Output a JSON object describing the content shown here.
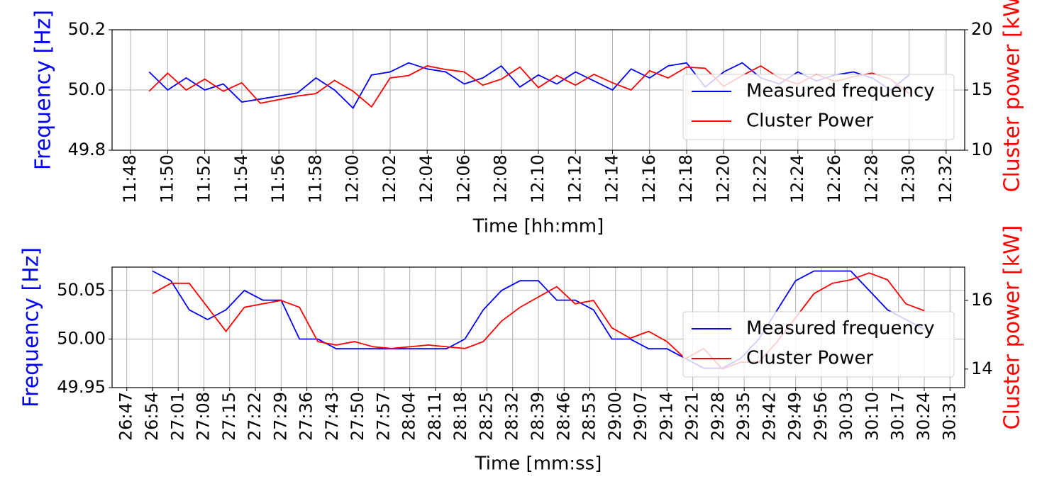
{
  "chart_data": [
    {
      "type": "line",
      "xlabel": "Time [hh:mm]",
      "ylabel": "Frequency [Hz]",
      "y2label": "Cluster power [kW]",
      "x": [
        "11:49",
        "11:50",
        "11:51",
        "11:52",
        "11:53",
        "11:54",
        "11:55",
        "11:56",
        "11:57",
        "11:58",
        "11:59",
        "12:00",
        "12:01",
        "12:02",
        "12:03",
        "12:04",
        "12:05",
        "12:06",
        "12:07",
        "12:08",
        "12:09",
        "12:10",
        "12:11",
        "12:12",
        "12:13",
        "12:14",
        "12:15",
        "12:16",
        "12:17",
        "12:18",
        "12:19",
        "12:20",
        "12:21",
        "12:22",
        "12:23",
        "12:24",
        "12:25",
        "12:26",
        "12:27",
        "12:28",
        "12:29",
        "12:30"
      ],
      "xlim": [
        "11:47",
        "12:33"
      ],
      "xticks": [
        "11:48",
        "11:50",
        "11:52",
        "11:54",
        "11:56",
        "11:58",
        "12:00",
        "12:02",
        "12:04",
        "12:06",
        "12:08",
        "12:10",
        "12:12",
        "12:14",
        "12:16",
        "12:18",
        "12:20",
        "12:22",
        "12:24",
        "12:26",
        "12:28",
        "12:30",
        "12:32"
      ],
      "ylim": [
        49.8,
        50.2
      ],
      "yticks": [
        {
          "value": 49.8,
          "label": "49.8"
        },
        {
          "value": 50,
          "label": "50.0"
        },
        {
          "value": 50.2,
          "label": "50.2"
        }
      ],
      "y2lim": [
        10,
        20
      ],
      "y2ticks": [
        10,
        15,
        20
      ],
      "grid": true,
      "legend": "lower right",
      "series": [
        {
          "name": "Measured frequency",
          "color": "#0000ff",
          "values": [
            50.06,
            50.0,
            50.04,
            50.0,
            50.02,
            49.96,
            49.97,
            49.98,
            49.99,
            50.04,
            50.0,
            49.94,
            50.05,
            50.06,
            50.09,
            50.07,
            50.06,
            50.02,
            50.04,
            50.08,
            50.01,
            50.05,
            50.02,
            50.06,
            50.03,
            50.0,
            50.07,
            50.04,
            50.08,
            50.09,
            50.01,
            50.06,
            50.09,
            50.04,
            50.02,
            50.06,
            50.03,
            50.05,
            50.06,
            50.04,
            50.0,
            50.05
          ]
        },
        {
          "name": "Cluster Power",
          "color": "#ff0000",
          "axis": "y2",
          "values": [
            14.9,
            16.4,
            15.0,
            15.9,
            14.9,
            15.6,
            13.9,
            14.2,
            14.5,
            14.7,
            15.8,
            14.9,
            13.6,
            16.0,
            16.2,
            17.0,
            16.7,
            16.5,
            15.4,
            15.9,
            16.9,
            15.2,
            16.2,
            15.4,
            16.3,
            15.6,
            15.0,
            16.6,
            16.0,
            16.9,
            16.8,
            15.3,
            16.2,
            17.0,
            16.0,
            15.5,
            16.3,
            15.7,
            16.1,
            16.4,
            15.9,
            14.7
          ]
        }
      ]
    },
    {
      "type": "line",
      "xlabel": "Time [mm:ss]",
      "ylabel": "Frequency [Hz]",
      "y2label": "Cluster power [kW]",
      "x": [
        "26:54",
        "26:59",
        "27:04",
        "27:09",
        "27:14",
        "27:19",
        "27:24",
        "27:29",
        "27:34",
        "27:39",
        "27:44",
        "27:49",
        "27:54",
        "27:59",
        "28:04",
        "28:09",
        "28:14",
        "28:19",
        "28:24",
        "28:29",
        "28:34",
        "28:39",
        "28:44",
        "28:49",
        "28:54",
        "28:59",
        "29:04",
        "29:09",
        "29:14",
        "29:19",
        "29:24",
        "29:29",
        "29:34",
        "29:39",
        "29:44",
        "29:49",
        "29:54",
        "29:59",
        "30:04",
        "30:09",
        "30:14",
        "30:19",
        "30:24"
      ],
      "xlim": [
        "26:43",
        "30:35"
      ],
      "xticks": [
        "26:47",
        "26:54",
        "27:01",
        "27:08",
        "27:15",
        "27:22",
        "27:29",
        "27:36",
        "27:43",
        "27:50",
        "27:57",
        "28:04",
        "28:11",
        "28:18",
        "28:25",
        "28:32",
        "28:39",
        "28:46",
        "28:53",
        "29:00",
        "29:07",
        "29:14",
        "29:21",
        "29:28",
        "29:35",
        "29:42",
        "29:49",
        "29:56",
        "30:03",
        "30:10",
        "30:17",
        "30:24",
        "30:31"
      ],
      "ylim": [
        49.95,
        50.074
      ],
      "yticks": [
        49.95,
        {
          "value": 50,
          "label": "50.00"
        },
        50.05
      ],
      "y2lim": [
        13.46,
        16.97
      ],
      "y2ticks": [
        14,
        16
      ],
      "grid": true,
      "legend": "lower right",
      "series": [
        {
          "name": "Measured frequency",
          "color": "#0000ff",
          "values": [
            50.07,
            50.06,
            50.03,
            50.02,
            50.03,
            50.05,
            50.04,
            50.04,
            50.0,
            50.0,
            49.99,
            49.99,
            49.99,
            49.99,
            49.99,
            49.99,
            49.99,
            50.0,
            50.03,
            50.05,
            50.06,
            50.06,
            50.04,
            50.04,
            50.03,
            50.0,
            50.0,
            49.99,
            49.99,
            49.98,
            49.97,
            49.97,
            49.98,
            50.0,
            50.03,
            50.06,
            50.07,
            50.07,
            50.07,
            50.05,
            50.03,
            50.02,
            50.01
          ]
        },
        {
          "name": "Cluster Power",
          "color": "#ff0000",
          "axis": "y2",
          "values": [
            16.2,
            16.5,
            16.5,
            15.8,
            15.1,
            15.8,
            15.9,
            16.0,
            15.8,
            14.8,
            14.7,
            14.8,
            14.65,
            14.6,
            14.65,
            14.7,
            14.65,
            14.6,
            14.8,
            15.4,
            15.8,
            16.1,
            16.4,
            15.9,
            16.0,
            15.2,
            14.9,
            15.1,
            14.8,
            14.3,
            14.6,
            14.0,
            14.2,
            14.2,
            14.8,
            15.5,
            16.2,
            16.5,
            16.6,
            16.8,
            16.6,
            15.9,
            15.7
          ]
        }
      ]
    }
  ]
}
